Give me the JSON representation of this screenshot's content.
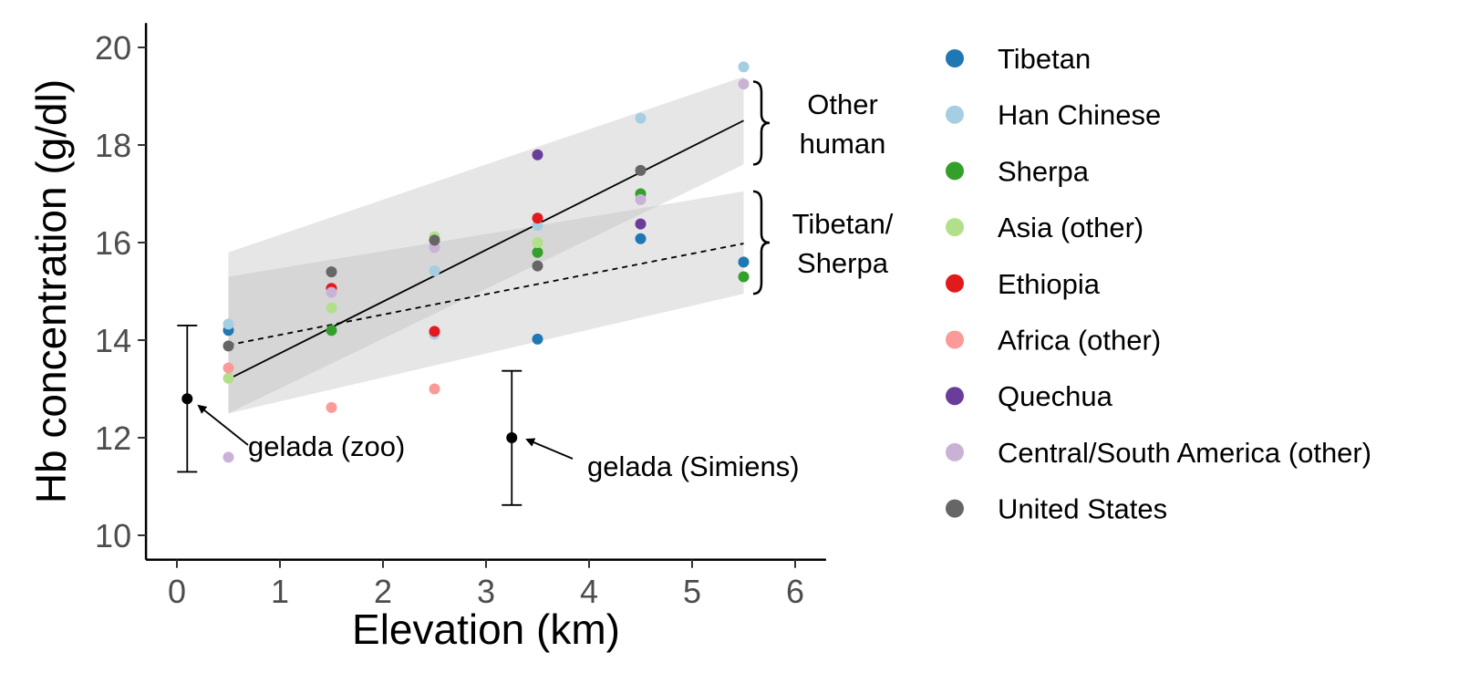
{
  "chart_data": {
    "type": "scatter",
    "xlabel": "Elevation (km)",
    "ylabel": "Hb concentration (g/dl)",
    "xlim": [
      -0.3,
      6.3
    ],
    "ylim": [
      9.5,
      20.5
    ],
    "x_ticks": [
      "0",
      "1",
      "2",
      "3",
      "4",
      "5",
      "6"
    ],
    "y_ticks": [
      "10",
      "12",
      "14",
      "16",
      "18",
      "20"
    ],
    "grid": false,
    "legend_position": "right",
    "series": [
      {
        "name": "Tibetan",
        "color": "#1f78b4",
        "points": [
          [
            0.5,
            14.2
          ],
          [
            2.5,
            14.15
          ],
          [
            3.5,
            14.02
          ],
          [
            4.5,
            16.08
          ],
          [
            5.5,
            15.6
          ]
        ]
      },
      {
        "name": "Han Chinese",
        "color": "#a6cee3",
        "points": [
          [
            0.5,
            14.33
          ],
          [
            2.5,
            15.42
          ],
          [
            2.5,
            14.12
          ],
          [
            3.5,
            16.35
          ],
          [
            4.5,
            18.55
          ],
          [
            5.5,
            19.6
          ]
        ]
      },
      {
        "name": "Sherpa",
        "color": "#33a02c",
        "points": [
          [
            1.5,
            14.2
          ],
          [
            3.5,
            15.8
          ],
          [
            4.5,
            17.0
          ],
          [
            5.5,
            15.3
          ]
        ]
      },
      {
        "name": "Asia (other)",
        "color": "#b2df8a",
        "points": [
          [
            0.5,
            13.22
          ],
          [
            1.5,
            14.66
          ],
          [
            2.5,
            16.12
          ],
          [
            3.5,
            16.0
          ]
        ]
      },
      {
        "name": "Ethiopia",
        "color": "#e31a1c",
        "points": [
          [
            1.5,
            15.06
          ],
          [
            2.5,
            14.18
          ],
          [
            3.5,
            16.5
          ]
        ]
      },
      {
        "name": "Africa (other)",
        "color": "#fb9a99",
        "points": [
          [
            0.5,
            13.43
          ],
          [
            1.5,
            12.62
          ],
          [
            2.5,
            13.0
          ]
        ]
      },
      {
        "name": "Quechua",
        "color": "#6a3d9a",
        "points": [
          [
            3.5,
            17.8
          ],
          [
            4.5,
            16.38
          ]
        ]
      },
      {
        "name": "Central/South America (other)",
        "color": "#cab2d6",
        "points": [
          [
            0.5,
            11.6
          ],
          [
            1.5,
            14.98
          ],
          [
            2.5,
            15.9
          ],
          [
            4.5,
            16.88
          ],
          [
            5.5,
            19.25
          ]
        ]
      },
      {
        "name": "United States",
        "color": "#666666",
        "points": [
          [
            0.5,
            13.88
          ],
          [
            1.5,
            15.4
          ],
          [
            2.5,
            16.05
          ],
          [
            3.5,
            15.52
          ],
          [
            4.5,
            17.48
          ]
        ]
      }
    ],
    "trend_lines": [
      {
        "group": "Other human",
        "style": "solid",
        "x": [
          0.5,
          5.5
        ],
        "y": [
          13.2,
          18.5
        ],
        "ci_upper": [
          15.8,
          19.4
        ],
        "ci_lower": [
          12.5,
          17.6
        ]
      },
      {
        "group": "Tibetan/Sherpa",
        "style": "dashed",
        "x": [
          0.5,
          5.5
        ],
        "y": [
          13.9,
          15.98
        ],
        "ci_upper": [
          15.3,
          17.05
        ],
        "ci_lower": [
          12.5,
          14.95
        ]
      }
    ],
    "error_bars": [
      {
        "label": "gelada (zoo)",
        "x": 0.1,
        "y": 12.8,
        "ymin": 11.3,
        "ymax": 14.3
      },
      {
        "label": "gelada (Simiens)",
        "x": 3.25,
        "y": 12.0,
        "ymin": 10.62,
        "ymax": 13.37
      }
    ],
    "brackets": [
      {
        "label_lines": [
          "Other",
          "human"
        ],
        "ymin": 17.6,
        "ymax": 19.3
      },
      {
        "label_lines": [
          "Tibetan/",
          "Sherpa"
        ],
        "ymin": 14.95,
        "ymax": 17.05
      }
    ]
  }
}
